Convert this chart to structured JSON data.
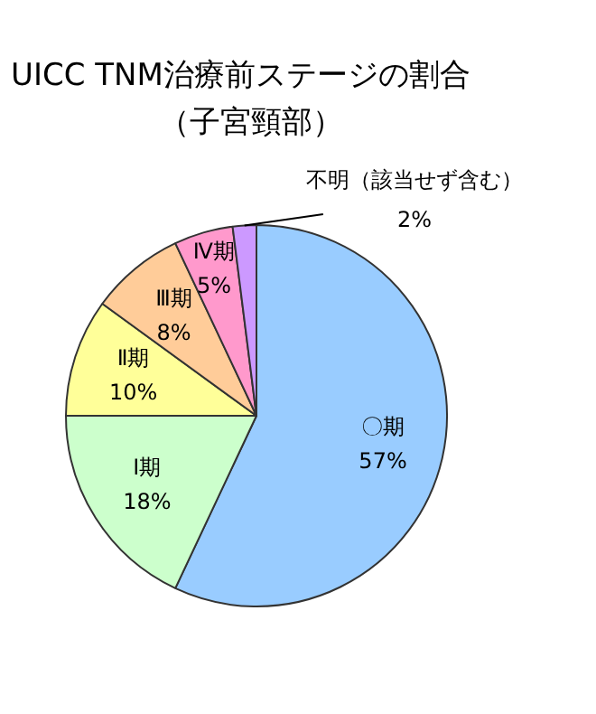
{
  "chart_data": {
    "type": "pie",
    "title": "UICC TNM治療前ステージの割合",
    "subtitle": "（子宮頸部）",
    "categories": [
      "〇期",
      "Ⅰ期",
      "Ⅱ期",
      "Ⅲ期",
      "Ⅳ期",
      "不明（該当せず含む）"
    ],
    "values": [
      57,
      18,
      10,
      8,
      5,
      2
    ],
    "value_labels": [
      "57%",
      "18%",
      "10%",
      "8%",
      "5%",
      "2%"
    ],
    "colors": [
      "#99ccff",
      "#ccffcc",
      "#ffff99",
      "#ffcc99",
      "#ff99cc",
      "#cc99ff"
    ],
    "legend": false
  }
}
